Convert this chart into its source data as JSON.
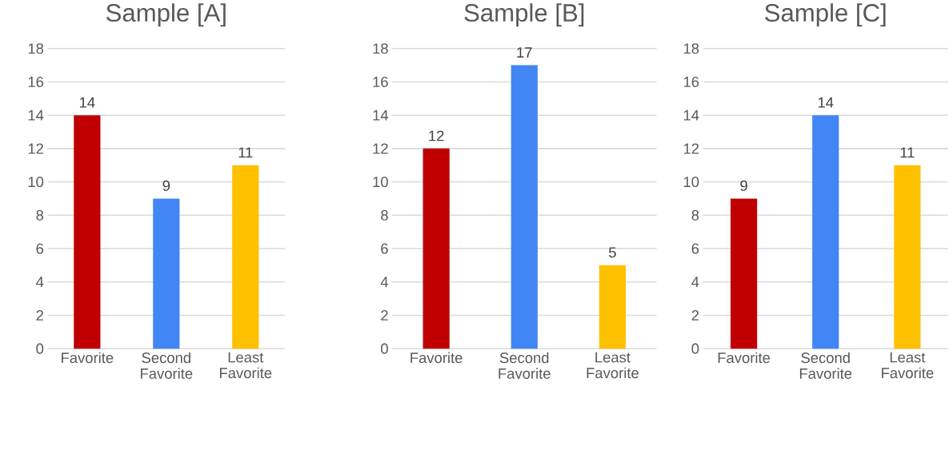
{
  "chart_data": [
    {
      "type": "bar",
      "title": "Sample [A]",
      "categories": [
        "Favorite",
        "Second Favorite",
        "Least Favorite"
      ],
      "values": [
        14,
        9,
        11
      ],
      "colors": [
        "#c00000",
        "#4285f4",
        "#ffc000"
      ],
      "ylim": [
        0,
        18
      ],
      "yticks": [
        0,
        2,
        4,
        6,
        8,
        10,
        12,
        14,
        16,
        18
      ],
      "grid": "y",
      "data_labels": true
    },
    {
      "type": "bar",
      "title": "Sample [B]",
      "categories": [
        "Favorite",
        "Second Favorite",
        "Least Favorite"
      ],
      "values": [
        12,
        17,
        5
      ],
      "colors": [
        "#c00000",
        "#4285f4",
        "#ffc000"
      ],
      "ylim": [
        0,
        18
      ],
      "yticks": [
        0,
        2,
        4,
        6,
        8,
        10,
        12,
        14,
        16,
        18
      ],
      "grid": "y",
      "data_labels": true
    },
    {
      "type": "bar",
      "title": "Sample [C]",
      "categories": [
        "Favorite",
        "Second Favorite",
        "Least Favorite"
      ],
      "values": [
        9,
        14,
        11
      ],
      "colors": [
        "#c00000",
        "#4285f4",
        "#ffc000"
      ],
      "ylim": [
        0,
        18
      ],
      "yticks": [
        0,
        2,
        4,
        6,
        8,
        10,
        12,
        14,
        16,
        18
      ],
      "grid": "y",
      "data_labels": true
    }
  ]
}
